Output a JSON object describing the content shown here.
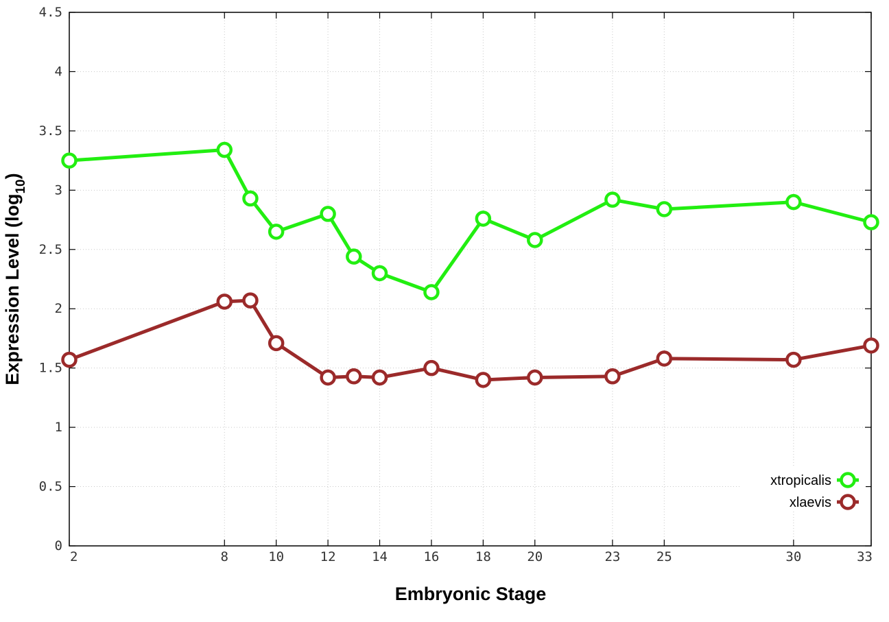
{
  "chart_data": {
    "type": "line",
    "title": "",
    "xlabel": "Embryonic Stage",
    "ylabel_main": "Expression Level (log",
    "ylabel_sub": "10",
    "ylabel_close": ")",
    "x": [
      2,
      8,
      9,
      10,
      12,
      13,
      14,
      16,
      18,
      20,
      23,
      25,
      30,
      33
    ],
    "xticks": [
      2,
      8,
      10,
      12,
      14,
      16,
      18,
      20,
      23,
      25,
      30,
      33
    ],
    "xlim": [
      2,
      33
    ],
    "ylim": [
      0,
      4.5
    ],
    "yticks": [
      0,
      0.5,
      1,
      1.5,
      2,
      2.5,
      3,
      3.5,
      4,
      4.5
    ],
    "ytick_labels": [
      "0",
      "0.5",
      "1",
      "1.5",
      "2",
      "2.5",
      "3",
      "3.5",
      "4",
      "4.5"
    ],
    "grid": true,
    "legend_position": "bottom-right",
    "series": [
      {
        "name": "xtropicalis",
        "color": "#22ee11",
        "values": [
          3.25,
          3.34,
          2.93,
          2.65,
          2.8,
          2.44,
          2.3,
          2.14,
          2.76,
          2.58,
          2.92,
          2.84,
          2.9,
          2.73
        ]
      },
      {
        "name": "xlaevis",
        "color": "#9b2a2a",
        "values": [
          1.57,
          2.06,
          2.07,
          1.71,
          1.42,
          1.43,
          1.42,
          1.5,
          1.4,
          1.42,
          1.43,
          1.58,
          1.57,
          1.69
        ]
      }
    ]
  }
}
